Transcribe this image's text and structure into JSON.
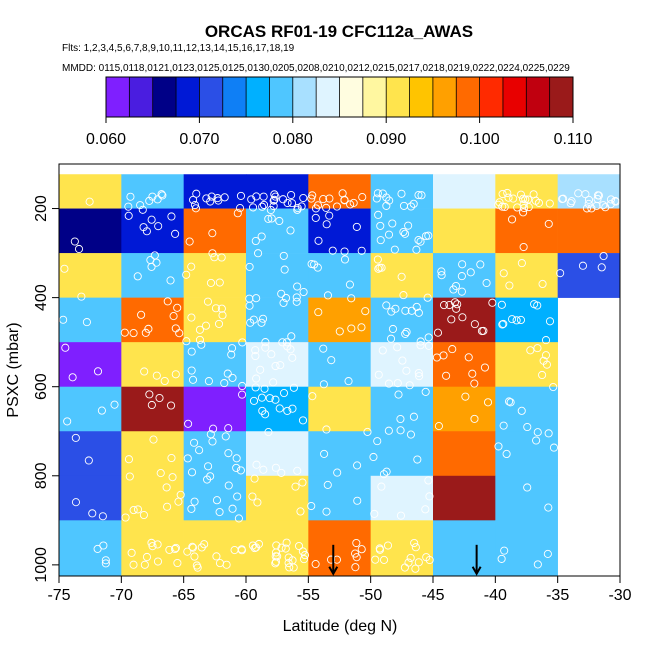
{
  "chart_data": {
    "type": "heatmap",
    "title": "ORCAS RF01-19 CFC112a_AWAS",
    "flights_line": "Flts: 1,2,3,4,5,6,7,8,9,10,11,12,13,14,15,16,17,18,19",
    "dates_line": "MMDD: 0115,0118,0121,0123,0125,0125,0130,0205,0208,0210,0212,0215,0217,0218,0219,0222,0224,0225,0229",
    "xlabel": "Latitude (deg N)",
    "ylabel": "PSXC (mbar)",
    "xlim": [
      -75,
      -30
    ],
    "ylim": [
      1025,
      100
    ],
    "xticks": [
      -75,
      -70,
      -65,
      -60,
      -55,
      -50,
      -45,
      -40,
      -35,
      -30
    ],
    "xtick_labels": [
      "-75",
      "-70",
      "-65",
      "-60",
      "-55",
      "-50",
      "-45",
      "-40",
      "-35",
      "-30"
    ],
    "yticks": [
      200,
      400,
      600,
      800,
      1000
    ],
    "ytick_labels": [
      "200",
      "400",
      "600",
      "800",
      "1000"
    ],
    "colorbar": {
      "range": [
        0.06,
        0.11
      ],
      "tick_values": [
        0.06,
        0.07,
        0.08,
        0.09,
        0.1,
        0.11
      ],
      "tick_labels": [
        "0.060",
        "0.070",
        "0.080",
        "0.090",
        "0.100",
        "0.110"
      ],
      "colors": [
        "#7f1fff",
        "#4a1de0",
        "#000087",
        "#0019d6",
        "#2b4fe6",
        "#0f7ff5",
        "#00b0ff",
        "#4fc6ff",
        "#a8e0ff",
        "#dff4ff",
        "#fffde0",
        "#fff7a0",
        "#ffe44d",
        "#ffc400",
        "#ffa000",
        "#ff6a00",
        "#ff2a00",
        "#e80000",
        "#c0000f",
        "#9a1a1a"
      ]
    },
    "x_bins": [
      -75,
      -70,
      -65,
      -60,
      -55,
      -50,
      -45,
      -40,
      -35,
      -30
    ],
    "y_bins": [
      100,
      200,
      300,
      400,
      500,
      600,
      700,
      800,
      900,
      1000
    ],
    "cells": [
      {
        "x0": -75,
        "x1": -70,
        "p0": 100,
        "p1": 200,
        "value": 0.0905
      },
      {
        "x0": -70,
        "x1": -65,
        "p0": 100,
        "p1": 200,
        "value": 0.0785
      },
      {
        "x0": -65,
        "x1": -60,
        "p0": 100,
        "p1": 200,
        "value": 0.069
      },
      {
        "x0": -60,
        "x1": -55,
        "p0": 100,
        "p1": 200,
        "value": 0.069
      },
      {
        "x0": -55,
        "x1": -50,
        "p0": 100,
        "p1": 200,
        "value": 0.099
      },
      {
        "x0": -50,
        "x1": -45,
        "p0": 100,
        "p1": 200,
        "value": 0.0785
      },
      {
        "x0": -45,
        "x1": -40,
        "p0": 100,
        "p1": 200,
        "value": 0.083
      },
      {
        "x0": -40,
        "x1": -35,
        "p0": 100,
        "p1": 200,
        "value": 0.0905
      },
      {
        "x0": -35,
        "x1": -30,
        "p0": 100,
        "p1": 200,
        "value": 0.082
      },
      {
        "x0": -75,
        "x1": -70,
        "p0": 200,
        "p1": 300,
        "value": 0.066
      },
      {
        "x0": -70,
        "x1": -65,
        "p0": 200,
        "p1": 300,
        "value": 0.069
      },
      {
        "x0": -65,
        "x1": -60,
        "p0": 200,
        "p1": 300,
        "value": 0.099
      },
      {
        "x0": -60,
        "x1": -55,
        "p0": 200,
        "p1": 300,
        "value": 0.0785
      },
      {
        "x0": -55,
        "x1": -50,
        "p0": 200,
        "p1": 300,
        "value": 0.069
      },
      {
        "x0": -50,
        "x1": -45,
        "p0": 200,
        "p1": 300,
        "value": 0.0785
      },
      {
        "x0": -45,
        "x1": -40,
        "p0": 200,
        "p1": 300,
        "value": 0.0905
      },
      {
        "x0": -40,
        "x1": -35,
        "p0": 200,
        "p1": 300,
        "value": 0.099
      },
      {
        "x0": -35,
        "x1": -30,
        "p0": 200,
        "p1": 300,
        "value": 0.099
      },
      {
        "x0": -75,
        "x1": -70,
        "p0": 300,
        "p1": 400,
        "value": 0.0905
      },
      {
        "x0": -70,
        "x1": -65,
        "p0": 300,
        "p1": 400,
        "value": 0.0785
      },
      {
        "x0": -65,
        "x1": -60,
        "p0": 300,
        "p1": 400,
        "value": 0.0905
      },
      {
        "x0": -60,
        "x1": -55,
        "p0": 300,
        "p1": 400,
        "value": 0.0785
      },
      {
        "x0": -55,
        "x1": -50,
        "p0": 300,
        "p1": 400,
        "value": 0.0785
      },
      {
        "x0": -50,
        "x1": -45,
        "p0": 300,
        "p1": 400,
        "value": 0.0905
      },
      {
        "x0": -45,
        "x1": -40,
        "p0": 300,
        "p1": 400,
        "value": 0.0785
      },
      {
        "x0": -40,
        "x1": -35,
        "p0": 300,
        "p1": 400,
        "value": 0.0905
      },
      {
        "x0": -35,
        "x1": -30,
        "p0": 300,
        "p1": 400,
        "value": 0.0705
      },
      {
        "x0": -75,
        "x1": -70,
        "p0": 400,
        "p1": 500,
        "value": 0.0785
      },
      {
        "x0": -70,
        "x1": -65,
        "p0": 400,
        "p1": 500,
        "value": 0.099
      },
      {
        "x0": -65,
        "x1": -60,
        "p0": 400,
        "p1": 500,
        "value": 0.0905
      },
      {
        "x0": -60,
        "x1": -55,
        "p0": 400,
        "p1": 500,
        "value": 0.0785
      },
      {
        "x0": -55,
        "x1": -50,
        "p0": 400,
        "p1": 500,
        "value": 0.0955
      },
      {
        "x0": -50,
        "x1": -45,
        "p0": 400,
        "p1": 500,
        "value": 0.0785
      },
      {
        "x0": -45,
        "x1": -40,
        "p0": 400,
        "p1": 500,
        "value": 0.1085
      },
      {
        "x0": -40,
        "x1": -35,
        "p0": 400,
        "p1": 500,
        "value": 0.0755
      },
      {
        "x0": -75,
        "x1": -70,
        "p0": 500,
        "p1": 600,
        "value": 0.0615
      },
      {
        "x0": -70,
        "x1": -65,
        "p0": 500,
        "p1": 600,
        "value": 0.0905
      },
      {
        "x0": -65,
        "x1": -60,
        "p0": 500,
        "p1": 600,
        "value": 0.0785
      },
      {
        "x0": -60,
        "x1": -55,
        "p0": 500,
        "p1": 600,
        "value": 0.0835
      },
      {
        "x0": -55,
        "x1": -50,
        "p0": 500,
        "p1": 600,
        "value": 0.0785
      },
      {
        "x0": -50,
        "x1": -45,
        "p0": 500,
        "p1": 600,
        "value": 0.0835
      },
      {
        "x0": -45,
        "x1": -40,
        "p0": 500,
        "p1": 600,
        "value": 0.099
      },
      {
        "x0": -40,
        "x1": -35,
        "p0": 500,
        "p1": 600,
        "value": 0.0905
      },
      {
        "x0": -75,
        "x1": -70,
        "p0": 600,
        "p1": 700,
        "value": 0.0785
      },
      {
        "x0": -70,
        "x1": -65,
        "p0": 600,
        "p1": 700,
        "value": 0.1085
      },
      {
        "x0": -65,
        "x1": -60,
        "p0": 600,
        "p1": 700,
        "value": 0.0615
      },
      {
        "x0": -60,
        "x1": -55,
        "p0": 600,
        "p1": 700,
        "value": 0.0755
      },
      {
        "x0": -55,
        "x1": -50,
        "p0": 600,
        "p1": 700,
        "value": 0.0905
      },
      {
        "x0": -50,
        "x1": -45,
        "p0": 600,
        "p1": 700,
        "value": 0.0785
      },
      {
        "x0": -45,
        "x1": -40,
        "p0": 600,
        "p1": 700,
        "value": 0.0955
      },
      {
        "x0": -40,
        "x1": -35,
        "p0": 600,
        "p1": 700,
        "value": 0.0785
      },
      {
        "x0": -75,
        "x1": -70,
        "p0": 700,
        "p1": 800,
        "value": 0.0705
      },
      {
        "x0": -70,
        "x1": -65,
        "p0": 700,
        "p1": 800,
        "value": 0.0905
      },
      {
        "x0": -65,
        "x1": -60,
        "p0": 700,
        "p1": 800,
        "value": 0.0785
      },
      {
        "x0": -60,
        "x1": -55,
        "p0": 700,
        "p1": 800,
        "value": 0.083
      },
      {
        "x0": -55,
        "x1": -50,
        "p0": 700,
        "p1": 800,
        "value": 0.0785
      },
      {
        "x0": -50,
        "x1": -45,
        "p0": 700,
        "p1": 800,
        "value": 0.0785
      },
      {
        "x0": -45,
        "x1": -40,
        "p0": 700,
        "p1": 800,
        "value": 0.099
      },
      {
        "x0": -40,
        "x1": -35,
        "p0": 700,
        "p1": 800,
        "value": 0.0785
      },
      {
        "x0": -75,
        "x1": -70,
        "p0": 800,
        "p1": 900,
        "value": 0.0705
      },
      {
        "x0": -70,
        "x1": -65,
        "p0": 800,
        "p1": 900,
        "value": 0.0905
      },
      {
        "x0": -65,
        "x1": -60,
        "p0": 800,
        "p1": 900,
        "value": 0.0785
      },
      {
        "x0": -60,
        "x1": -55,
        "p0": 800,
        "p1": 900,
        "value": 0.0905
      },
      {
        "x0": -55,
        "x1": -50,
        "p0": 800,
        "p1": 900,
        "value": 0.0785
      },
      {
        "x0": -50,
        "x1": -45,
        "p0": 800,
        "p1": 900,
        "value": 0.083
      },
      {
        "x0": -45,
        "x1": -40,
        "p0": 800,
        "p1": 900,
        "value": 0.1085
      },
      {
        "x0": -40,
        "x1": -35,
        "p0": 800,
        "p1": 900,
        "value": 0.0785
      },
      {
        "x0": -75,
        "x1": -70,
        "p0": 900,
        "p1": 1000,
        "value": 0.0785
      },
      {
        "x0": -70,
        "x1": -65,
        "p0": 900,
        "p1": 1000,
        "value": 0.0905
      },
      {
        "x0": -65,
        "x1": -60,
        "p0": 900,
        "p1": 1000,
        "value": 0.0905
      },
      {
        "x0": -60,
        "x1": -55,
        "p0": 900,
        "p1": 1000,
        "value": 0.0905
      },
      {
        "x0": -55,
        "x1": -50,
        "p0": 900,
        "p1": 1000,
        "value": 0.099
      },
      {
        "x0": -50,
        "x1": -45,
        "p0": 900,
        "p1": 1000,
        "value": 0.0905
      },
      {
        "x0": -45,
        "x1": -40,
        "p0": 900,
        "p1": 1000,
        "value": 0.0785
      },
      {
        "x0": -40,
        "x1": -35,
        "p0": 900,
        "p1": 1000,
        "value": 0.0785
      }
    ],
    "sample_points": {
      "note": "white open circles: individual samples (lat, pressure)",
      "seed": 7,
      "per_cell_counts": [
        [
          1,
          8,
          12,
          18,
          14,
          12,
          0,
          20,
          20
        ],
        [
          2,
          8,
          3,
          8,
          8,
          14,
          0,
          4,
          0
        ],
        [
          2,
          6,
          7,
          8,
          6,
          6,
          10,
          4,
          4
        ],
        [
          2,
          10,
          10,
          12,
          6,
          14,
          12,
          10,
          0
        ],
        [
          3,
          4,
          12,
          14,
          4,
          12,
          8,
          6,
          0
        ],
        [
          3,
          4,
          4,
          14,
          2,
          6,
          4,
          6,
          0
        ],
        [
          2,
          4,
          12,
          6,
          4,
          6,
          0,
          6,
          0
        ],
        [
          3,
          10,
          10,
          6,
          4,
          6,
          0,
          2,
          0
        ],
        [
          4,
          12,
          14,
          22,
          8,
          14,
          0,
          4,
          0
        ]
      ]
    },
    "markers": [
      {
        "type": "down-arrow",
        "lat": -53,
        "p_top": 955,
        "p_bottom": 1020
      },
      {
        "type": "down-arrow",
        "lat": -41.5,
        "p_top": 955,
        "p_bottom": 1020
      }
    ]
  }
}
